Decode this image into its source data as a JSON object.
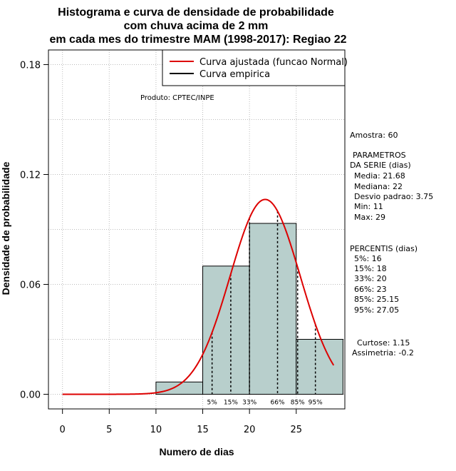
{
  "chart_data": {
    "type": "bar",
    "title_lines": [
      "Histograma e curva de densidade de probabilidade",
      "com chuva acima de 2 mm",
      "em cada mes do trimestre MAM (1998-2017): Regiao 22"
    ],
    "xlabel": "Numero de dias",
    "ylabel": "Densidade de probabilidade",
    "xlim": [
      -1.5,
      30.2
    ],
    "ylim": [
      -0.008,
      0.188
    ],
    "x_ticks": [
      0,
      5,
      10,
      15,
      20,
      25
    ],
    "y_ticks": [
      0.0,
      0.06,
      0.12,
      0.18
    ],
    "y_tick_labels": [
      "0.00",
      "0.06",
      "0.12",
      "0.18"
    ],
    "bins": [
      {
        "start": 10,
        "end": 15,
        "density": 0.0067
      },
      {
        "start": 15,
        "end": 20,
        "density": 0.07
      },
      {
        "start": 20,
        "end": 25,
        "density": 0.0933
      },
      {
        "start": 25,
        "end": 30,
        "density": 0.03
      }
    ],
    "fitted_curve": {
      "name": "Curva ajustada (funcao Normal)",
      "mean": 21.68,
      "sd": 3.75,
      "x_range": [
        0,
        29
      ],
      "color": "#dd0000"
    },
    "empirical_curve": {
      "name": "Curva empirica",
      "color": "#000000"
    },
    "percentiles": [
      {
        "label": "5%",
        "value": 16
      },
      {
        "label": "15%",
        "value": 18
      },
      {
        "label": "33%",
        "value": 20
      },
      {
        "label": "66%",
        "value": 23
      },
      {
        "label": "85%",
        "value": 25.15
      },
      {
        "label": "95%",
        "value": 27.05
      }
    ],
    "product_label": "Produto: CPTEC/INPE",
    "side_text": {
      "amostra": "Amostra: 60",
      "param_title_1": "PARAMETROS",
      "param_title_2": "DA SERIE (dias)",
      "media": "Media: 21.68",
      "mediana": "Mediana: 22",
      "desvio": "Desvio padrao: 3.75",
      "min": "Min: 11",
      "max": "Max: 29",
      "percentis_title": "PERCENTIS (dias)",
      "p5": "5%: 16",
      "p15": "15%: 18",
      "p33": "33%: 20",
      "p66": "66%: 23",
      "p85": "85%: 25.15",
      "p95": "95%: 27.05",
      "curtose": "Curtose: 1.15",
      "assimetria": "Assimetria: -0.2"
    },
    "bar_color": "#b8cfcc",
    "grid": true,
    "legend_position": "top-right"
  }
}
